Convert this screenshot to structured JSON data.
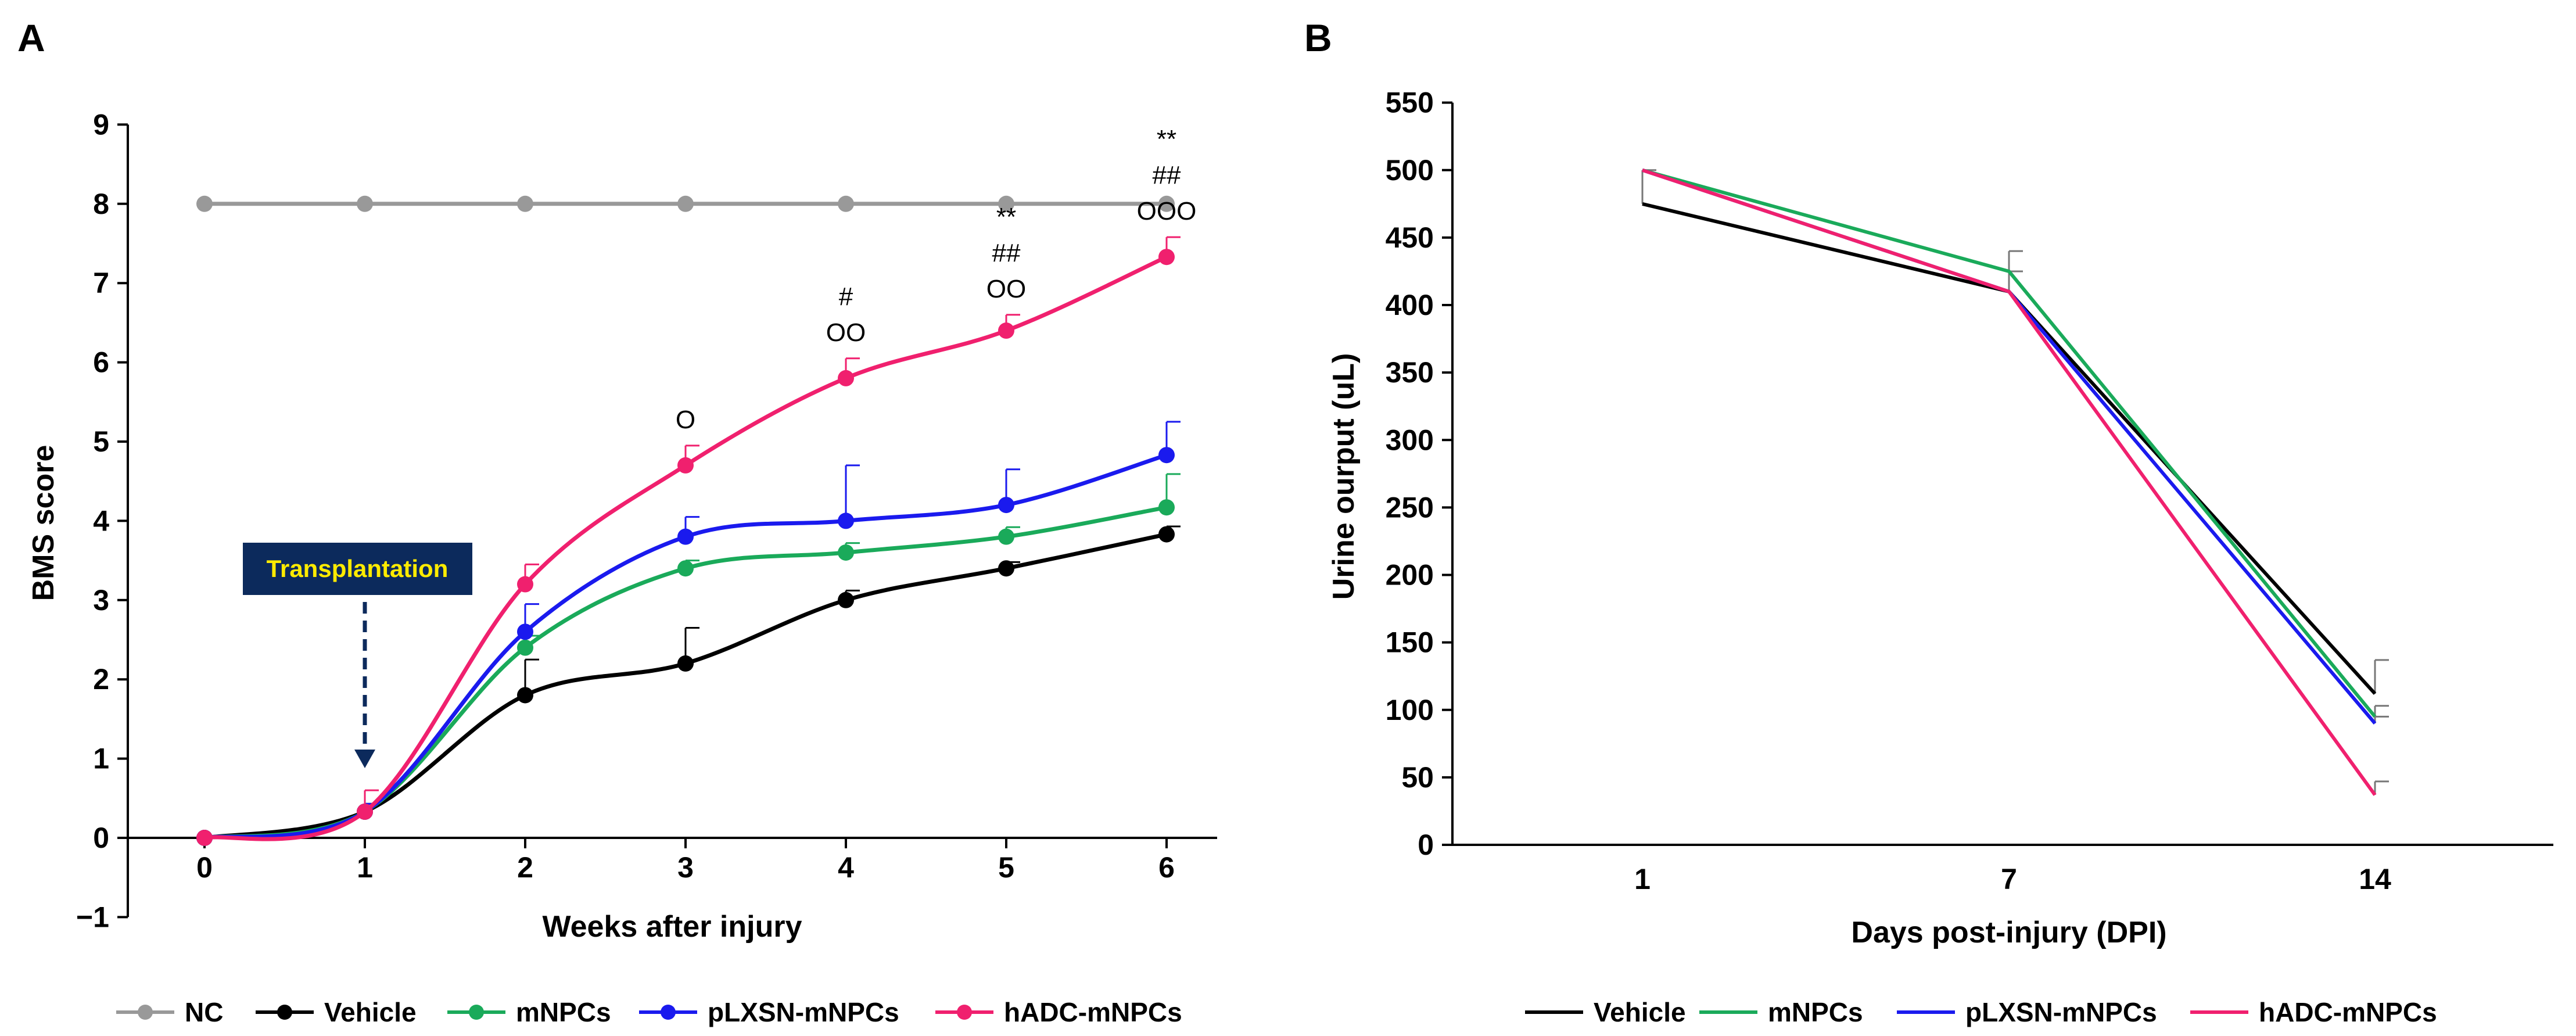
{
  "chart_data": [
    {
      "panel": "A",
      "type": "line",
      "xlabel": "Weeks after injury",
      "ylabel": "BMS score",
      "ylim": [
        -1,
        9
      ],
      "yticks": [
        "9",
        "8",
        "7",
        "6",
        "5",
        "4",
        "3",
        "2",
        "1",
        "0",
        "−1"
      ],
      "x": [
        0,
        1,
        2,
        3,
        4,
        5,
        6
      ],
      "xtick_labels": [
        "0",
        "1",
        "2",
        "3",
        "4",
        "5",
        "6"
      ],
      "series": [
        {
          "name": "NC",
          "color": "#999999",
          "values": [
            8,
            8,
            8,
            8,
            8,
            8,
            8
          ],
          "errors": [
            0,
            0,
            0,
            0,
            0,
            0,
            0
          ]
        },
        {
          "name": "Vehicle",
          "color": "#000000",
          "values": [
            0,
            0.33,
            1.8,
            2.2,
            3.0,
            3.4,
            3.83
          ],
          "errors": [
            0,
            0.1,
            0.45,
            0.45,
            0.12,
            0.08,
            0.1
          ]
        },
        {
          "name": "mNPCs",
          "color": "#1aaa5a",
          "values": [
            0,
            0.33,
            2.4,
            3.4,
            3.6,
            3.8,
            4.17
          ],
          "errors": [
            0,
            0.1,
            0.15,
            0.1,
            0.12,
            0.12,
            0.42
          ]
        },
        {
          "name": "pLXSN-mNPCs",
          "color": "#1a1aee",
          "values": [
            0,
            0.33,
            2.6,
            3.8,
            4.0,
            4.2,
            4.83
          ],
          "errors": [
            0,
            0.1,
            0.35,
            0.25,
            0.7,
            0.45,
            0.42
          ]
        },
        {
          "name": "hADC-mNPCs",
          "color": "#f0206e",
          "values": [
            0,
            0.33,
            3.2,
            4.7,
            5.8,
            6.4,
            7.33
          ],
          "errors": [
            0,
            0.27,
            0.25,
            0.25,
            0.25,
            0.2,
            0.25
          ]
        }
      ],
      "annotations": [
        {
          "x": 3,
          "lines": [
            "O"
          ]
        },
        {
          "x": 4,
          "lines": [
            "#",
            "OO"
          ]
        },
        {
          "x": 5,
          "lines": [
            "**",
            "##",
            "OO"
          ]
        },
        {
          "x": 6,
          "lines": [
            "**",
            "##",
            "OOO"
          ]
        }
      ],
      "callout": {
        "text": "Transplantation",
        "x": 1
      }
    },
    {
      "panel": "B",
      "type": "line",
      "xlabel": "Days post-injury (DPI)",
      "ylabel": "Urine ourput (uL)",
      "ylim": [
        0,
        550
      ],
      "yticks": [
        "550",
        "500",
        "450",
        "400",
        "350",
        "300",
        "250",
        "200",
        "150",
        "100",
        "50",
        "0"
      ],
      "categories": [
        "1",
        "7",
        "14"
      ],
      "series": [
        {
          "name": "Vehicle",
          "color": "#000000",
          "values": [
            475,
            410,
            112
          ],
          "errors": [
            25,
            15,
            25
          ]
        },
        {
          "name": "mNPCs",
          "color": "#1aaa5a",
          "values": [
            500,
            425,
            95
          ],
          "errors": [
            0,
            15,
            8
          ]
        },
        {
          "name": "pLXSN-mNPCs",
          "color": "#1a1aee",
          "values": [
            500,
            410,
            90
          ],
          "errors": [
            0,
            0,
            5
          ]
        },
        {
          "name": "hADC-mNPCs",
          "color": "#f0206e",
          "values": [
            500,
            410,
            37
          ],
          "errors": [
            0,
            0,
            10
          ]
        }
      ]
    }
  ]
}
